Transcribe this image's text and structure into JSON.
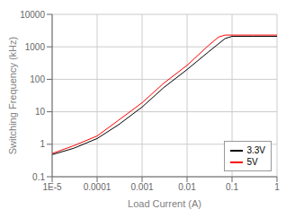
{
  "chart_data": {
    "type": "line",
    "xlabel": "Load Current (A)",
    "ylabel": "Switching Frequency (kHz)",
    "series": [
      {
        "name": "3.3V",
        "color": "black",
        "x": [
          1e-05,
          3e-05,
          0.0001,
          0.0003,
          0.001,
          0.003,
          0.01,
          0.03,
          0.07,
          0.1,
          0.3,
          1.0
        ],
        "values": [
          0.48,
          0.75,
          1.5,
          4.0,
          14,
          55,
          200,
          700,
          1800,
          2100,
          2100,
          2100
        ]
      },
      {
        "name": "5V",
        "color": "red",
        "x": [
          1e-05,
          3e-05,
          0.0001,
          0.0003,
          0.001,
          0.003,
          0.01,
          0.03,
          0.05,
          0.07,
          0.1,
          0.3,
          1.0
        ],
        "values": [
          0.52,
          0.9,
          1.8,
          5.5,
          19,
          75,
          270,
          1100,
          2000,
          2300,
          2300,
          2300,
          2300
        ]
      }
    ],
    "xlim": [
      1e-05,
      1
    ],
    "ylim": [
      0.1,
      10000
    ],
    "xticks": [
      {
        "value": 1e-05,
        "label": "1E-5"
      },
      0.0001,
      0.001,
      0.01,
      0.1,
      1
    ],
    "yticks": [
      0.1,
      1,
      10,
      100,
      1000,
      10000
    ],
    "log": true,
    "grid": true,
    "legend": "lower right"
  }
}
